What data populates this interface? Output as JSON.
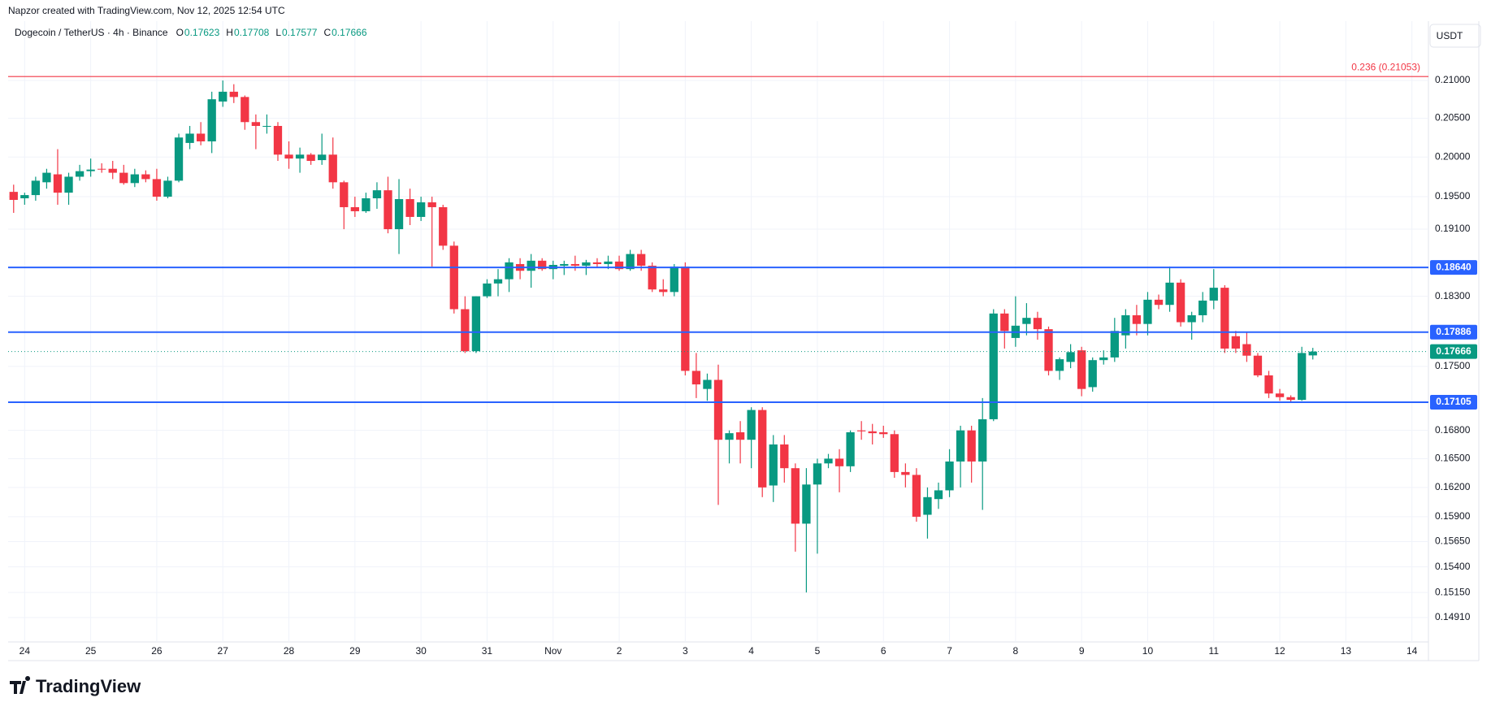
{
  "attribution": "Napzor created with TradingView.com, Nov 12, 2025 12:54 UTC",
  "brand": "TradingView",
  "chart_data": {
    "type": "candlestick",
    "title": "Dogecoin / TetherUS · 4h · Binance",
    "currency": "USDT",
    "ohlc_labels": [
      "O",
      "H",
      "L",
      "C"
    ],
    "up_color": "#089981",
    "down_color": "#f23645",
    "log_scale": true,
    "grid": true,
    "ylim": [
      0.1468,
      0.2181
    ],
    "yticks": [
      {
        "value": 0.21,
        "label": "0.21000"
      },
      {
        "value": 0.205,
        "label": "0.20500"
      },
      {
        "value": 0.2,
        "label": "0.20000"
      },
      {
        "value": 0.195,
        "label": "0.19500"
      },
      {
        "value": 0.191,
        "label": "0.19100"
      },
      {
        "value": 0.183,
        "label": "0.18300"
      },
      {
        "value": 0.175,
        "label": "0.17500"
      },
      {
        "value": 0.168,
        "label": "0.16800"
      },
      {
        "value": 0.165,
        "label": "0.16500"
      },
      {
        "value": 0.162,
        "label": "0.16200"
      },
      {
        "value": 0.159,
        "label": "0.15900"
      },
      {
        "value": 0.1565,
        "label": "0.15650"
      },
      {
        "value": 0.154,
        "label": "0.15400"
      },
      {
        "value": 0.1515,
        "label": "0.15150"
      },
      {
        "value": 0.1491,
        "label": "0.14910"
      }
    ],
    "hlines": [
      {
        "value": 0.21053,
        "label": "0.236 (0.21053)",
        "color": "#f23645",
        "label_at": "line"
      },
      {
        "value": 0.1864,
        "label": "0.18640",
        "color": "#2962ff",
        "label_at": "axis"
      },
      {
        "value": 0.17886,
        "label": "0.17886",
        "color": "#2962ff",
        "label_at": "axis"
      },
      {
        "value": 0.17105,
        "label": "0.17105",
        "color": "#2962ff",
        "label_at": "axis"
      }
    ],
    "last_price_line": true,
    "categories": [
      null,
      "24",
      null,
      null,
      null,
      null,
      null,
      "25",
      null,
      null,
      null,
      null,
      null,
      "26",
      null,
      null,
      null,
      null,
      null,
      "27",
      null,
      null,
      null,
      null,
      null,
      "28",
      null,
      null,
      null,
      null,
      null,
      "29",
      null,
      null,
      null,
      null,
      null,
      "30",
      null,
      null,
      null,
      null,
      null,
      "31",
      null,
      null,
      null,
      null,
      null,
      "Nov",
      null,
      null,
      null,
      null,
      null,
      "2",
      null,
      null,
      null,
      null,
      null,
      "3",
      null,
      null,
      null,
      null,
      null,
      "4",
      null,
      null,
      null,
      null,
      null,
      "5",
      null,
      null,
      null,
      null,
      null,
      "6",
      null,
      null,
      null,
      null,
      null,
      "7",
      null,
      null,
      null,
      null,
      null,
      "8",
      null,
      null,
      null,
      null,
      null,
      "9",
      null,
      null,
      null,
      null,
      null,
      "10",
      null,
      null,
      null,
      null,
      null,
      "11",
      null,
      null,
      null,
      null,
      null,
      "12",
      null,
      null,
      null,
      null,
      null,
      "13",
      null,
      null,
      null,
      null,
      null,
      "14",
      null
    ],
    "open": [
      0.1956,
      0.1948,
      0.1952,
      0.1968,
      0.1978,
      0.1955,
      0.1975,
      0.1982,
      0.1985,
      0.1985,
      0.198,
      0.1967,
      0.1978,
      0.1972,
      0.195,
      0.197,
      0.2018,
      0.203,
      0.202,
      0.2072,
      0.2085,
      0.2078,
      0.2045,
      0.204,
      0.204,
      0.2003,
      0.1998,
      0.2003,
      0.1996,
      0.2003,
      0.1968,
      0.1937,
      0.1932,
      0.1948,
      0.1958,
      0.191,
      0.1947,
      0.1925,
      0.1943,
      0.1937,
      0.189,
      0.1815,
      0.1767,
      0.183,
      0.1845,
      0.185,
      0.1868,
      0.186,
      0.1872,
      0.1862,
      0.1866,
      0.1868,
      0.1866,
      0.187,
      0.1868,
      0.1871,
      0.1862,
      0.188,
      0.1866,
      0.1838,
      0.1835,
      0.1865,
      0.1745,
      0.1725,
      0.1735,
      0.167,
      0.1678,
      0.167,
      0.1702,
      0.1622,
      0.1665,
      0.164,
      0.1583,
      0.1623,
      0.1645,
      0.165,
      0.1642,
      0.168,
      0.1679,
      0.1678,
      0.1676,
      0.1636,
      0.1633,
      0.1592,
      0.1608,
      0.1617,
      0.1647,
      0.168,
      0.1647,
      0.1692,
      0.181,
      0.1782,
      0.1798,
      0.1805,
      0.1792,
      0.1745,
      0.1755,
      0.1768,
      0.1727,
      0.1757,
      0.176,
      0.1785,
      0.1808,
      0.1798,
      0.1826,
      0.182,
      0.1846,
      0.18,
      0.1808,
      0.1825,
      0.184,
      0.1784,
      0.1775,
      0.1762,
      0.174,
      0.172,
      0.1716,
      0.1713,
      0.17623,
      null,
      null,
      null,
      null,
      null,
      null,
      null,
      null,
      null,
      null
    ],
    "high": [
      0.1965,
      0.1955,
      0.1975,
      0.1985,
      0.201,
      0.198,
      0.199,
      0.1998,
      0.1992,
      0.1995,
      0.199,
      0.1985,
      0.1983,
      0.1985,
      0.1975,
      0.203,
      0.204,
      0.2045,
      0.2085,
      0.21,
      0.2095,
      0.208,
      0.2055,
      0.2055,
      0.2045,
      0.202,
      0.2012,
      0.2005,
      0.203,
      0.2025,
      0.197,
      0.195,
      0.1955,
      0.1968,
      0.1975,
      0.1972,
      0.196,
      0.195,
      0.195,
      0.194,
      0.1895,
      0.183,
      0.183,
      0.185,
      0.1862,
      0.1875,
      0.1875,
      0.188,
      0.1875,
      0.1872,
      0.1872,
      0.1878,
      0.1873,
      0.1875,
      0.1878,
      0.1878,
      0.1885,
      0.1885,
      0.187,
      0.185,
      0.1868,
      0.187,
      0.1765,
      0.1742,
      0.1752,
      0.168,
      0.169,
      0.1705,
      0.1705,
      0.1675,
      0.1675,
      0.1645,
      0.164,
      0.165,
      0.1655,
      0.166,
      0.168,
      0.169,
      0.1687,
      0.1685,
      0.168,
      0.1645,
      0.164,
      0.162,
      0.1625,
      0.166,
      0.1685,
      0.1685,
      0.1715,
      0.1815,
      0.1815,
      0.183,
      0.1822,
      0.1812,
      0.1795,
      0.176,
      0.1775,
      0.1772,
      0.176,
      0.1768,
      0.1805,
      0.1815,
      0.182,
      0.1835,
      0.1832,
      0.1865,
      0.185,
      0.1812,
      0.1835,
      0.1862,
      0.1843,
      0.179,
      0.1788,
      0.1765,
      0.1745,
      0.1725,
      0.1718,
      0.1772,
      0.17708,
      null,
      null,
      null,
      null,
      null,
      null,
      null,
      null,
      null,
      null
    ],
    "low": [
      0.193,
      0.194,
      0.1945,
      0.196,
      0.194,
      0.194,
      0.197,
      0.1975,
      0.198,
      0.1972,
      0.1965,
      0.1962,
      0.1968,
      0.1945,
      0.1948,
      0.1968,
      0.201,
      0.2015,
      0.2005,
      0.2065,
      0.207,
      0.2035,
      0.201,
      0.203,
      0.1995,
      0.1985,
      0.198,
      0.199,
      0.199,
      0.196,
      0.191,
      0.1925,
      0.193,
      0.1935,
      0.1905,
      0.188,
      0.1915,
      0.192,
      0.1865,
      0.1885,
      0.181,
      0.1765,
      0.1765,
      0.1828,
      0.183,
      0.1835,
      0.185,
      0.184,
      0.186,
      0.185,
      0.1855,
      0.186,
      0.1855,
      0.1864,
      0.1862,
      0.186,
      0.186,
      0.186,
      0.1835,
      0.183,
      0.183,
      0.174,
      0.1715,
      0.1712,
      0.1602,
      0.1645,
      0.1645,
      0.164,
      0.161,
      0.1605,
      0.1625,
      0.1555,
      0.1515,
      0.1553,
      0.164,
      0.1615,
      0.1636,
      0.167,
      0.1665,
      0.1672,
      0.163,
      0.162,
      0.1585,
      0.1568,
      0.1598,
      0.161,
      0.162,
      0.1625,
      0.1597,
      0.169,
      0.177,
      0.1772,
      0.1785,
      0.178,
      0.174,
      0.1735,
      0.1748,
      0.1717,
      0.1722,
      0.1752,
      0.1755,
      0.177,
      0.1785,
      0.1785,
      0.1815,
      0.1812,
      0.1795,
      0.178,
      0.18,
      0.1815,
      0.1765,
      0.1765,
      0.1755,
      0.1738,
      0.1715,
      0.1712,
      0.171,
      0.1712,
      0.17577,
      null,
      null,
      null,
      null,
      null,
      null,
      null,
      null,
      null,
      null
    ],
    "close": [
      0.1946,
      0.1952,
      0.197,
      0.198,
      0.1955,
      0.1975,
      0.1982,
      0.1984,
      0.1984,
      0.198,
      0.1967,
      0.1978,
      0.1972,
      0.195,
      0.197,
      0.2025,
      0.203,
      0.202,
      0.2075,
      0.2085,
      0.2078,
      0.2045,
      0.204,
      0.204,
      0.2003,
      0.1998,
      0.2003,
      0.1995,
      0.2003,
      0.1968,
      0.1937,
      0.1932,
      0.1948,
      0.1958,
      0.191,
      0.1947,
      0.1925,
      0.1943,
      0.1937,
      0.189,
      0.1815,
      0.1767,
      0.183,
      0.1845,
      0.185,
      0.187,
      0.186,
      0.1872,
      0.1862,
      0.1867,
      0.1868,
      0.1866,
      0.187,
      0.1868,
      0.1871,
      0.1862,
      0.188,
      0.1866,
      0.1838,
      0.1835,
      0.1865,
      0.1745,
      0.173,
      0.1735,
      0.167,
      0.1677,
      0.167,
      0.1702,
      0.162,
      0.1665,
      0.164,
      0.1583,
      0.1623,
      0.1645,
      0.165,
      0.1642,
      0.1678,
      0.1679,
      0.1677,
      0.1676,
      0.1636,
      0.1633,
      0.159,
      0.161,
      0.1617,
      0.1647,
      0.168,
      0.1647,
      0.1692,
      0.181,
      0.179,
      0.1796,
      0.1805,
      0.1792,
      0.1745,
      0.1758,
      0.1766,
      0.1725,
      0.1757,
      0.176,
      0.179,
      0.1808,
      0.1798,
      0.1826,
      0.182,
      0.1846,
      0.18,
      0.1808,
      0.1825,
      0.184,
      0.177,
      0.177,
      0.1762,
      0.174,
      0.172,
      0.1716,
      0.1713,
      0.1765,
      0.17666,
      null,
      null,
      null,
      null,
      null,
      null,
      null,
      null,
      null,
      null
    ]
  }
}
